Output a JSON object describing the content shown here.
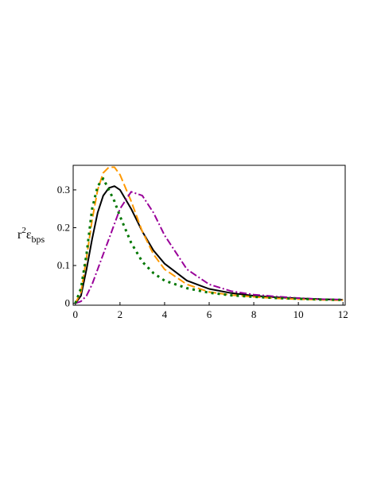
{
  "chart_data": {
    "type": "line",
    "ylabel": {
      "base": "r",
      "sup": "2",
      "symbol": "ε",
      "sub": "bps"
    },
    "x": [
      0,
      0.25,
      0.5,
      0.75,
      1,
      1.25,
      1.5,
      1.75,
      2,
      2.5,
      3,
      3.5,
      4,
      5,
      6,
      7,
      8,
      9,
      10,
      11,
      12
    ],
    "series": [
      {
        "color": "#000000",
        "dash": "solid",
        "values": [
          0,
          0.02,
          0.09,
          0.17,
          0.24,
          0.285,
          0.305,
          0.31,
          0.3,
          0.25,
          0.19,
          0.14,
          0.105,
          0.06,
          0.038,
          0.027,
          0.02,
          0.016,
          0.013,
          0.011,
          0.009
        ]
      },
      {
        "color": "#ff9900",
        "dash": "dash",
        "values": [
          0,
          0.03,
          0.12,
          0.22,
          0.3,
          0.345,
          0.36,
          0.36,
          0.34,
          0.27,
          0.19,
          0.13,
          0.09,
          0.05,
          0.03,
          0.022,
          0.017,
          0.013,
          0.011,
          0.009,
          0.008
        ]
      },
      {
        "color": "#990099",
        "dash": "dashdot",
        "values": [
          0,
          0.005,
          0.02,
          0.05,
          0.09,
          0.13,
          0.17,
          0.21,
          0.25,
          0.295,
          0.285,
          0.24,
          0.18,
          0.09,
          0.05,
          0.032,
          0.023,
          0.018,
          0.014,
          0.011,
          0.01
        ]
      },
      {
        "color": "#007700",
        "dash": "dot",
        "values": [
          0,
          0.04,
          0.13,
          0.25,
          0.31,
          0.33,
          0.3,
          0.27,
          0.23,
          0.16,
          0.11,
          0.08,
          0.06,
          0.04,
          0.028,
          0.021,
          0.017,
          0.014,
          0.012,
          0.01,
          0.009
        ]
      }
    ],
    "xlim": [
      -0.1,
      12.1
    ],
    "xticks": [
      0,
      2,
      4,
      6,
      8,
      10,
      12
    ],
    "ylim": [
      -0.005,
      0.365
    ],
    "yticks": [
      0,
      0.1,
      0.2,
      0.3
    ]
  }
}
